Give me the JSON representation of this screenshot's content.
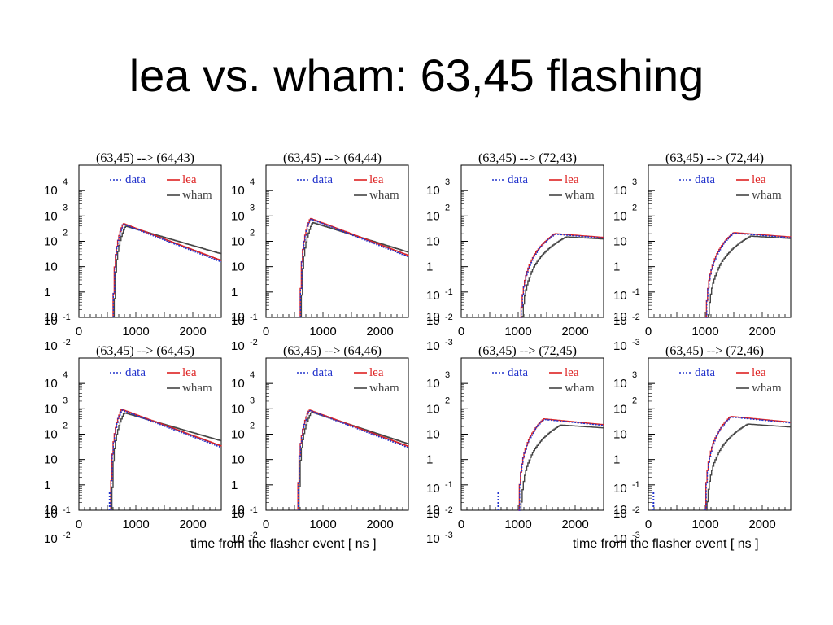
{
  "title": "lea vs. wham: 63,45 flashing",
  "legend": {
    "data": "data",
    "lea": "lea",
    "wham": "wham"
  },
  "colors": {
    "data": "#2233cc",
    "lea": "#dd2222",
    "wham": "#444444"
  },
  "xlabel": "time from the flasher event [ ns ]",
  "chart_data": [
    {
      "type": "line",
      "title": "(63,45) --> (64,43)",
      "xlim": [
        0,
        2500
      ],
      "xticks": [
        0,
        1000,
        2000
      ],
      "yscale": "log",
      "ylim": [
        0.01,
        10000
      ],
      "ytick_labels": [
        {
          "base": "10",
          "exp": "4"
        },
        {
          "base": "10",
          "exp": "3"
        },
        {
          "base": "10",
          "exp": "2"
        },
        {
          "base": "10",
          "exp": ""
        },
        {
          "base": "1",
          "exp": ""
        },
        {
          "base": "10",
          "exp": "-1"
        },
        {
          "base": "10",
          "exp": "-2"
        }
      ],
      "onset": 600,
      "peak_t": 780,
      "peak": 50,
      "decay_per_ns": 0.00195,
      "wham_onset": 620,
      "wham_peak_t": 820,
      "wham_peak": 40,
      "wham_decay_per_ns": 0.0015,
      "data_early": []
    },
    {
      "type": "line",
      "title": "(63,45) --> (64,44)",
      "xlim": [
        0,
        2500
      ],
      "xticks": [
        0,
        1000,
        2000
      ],
      "yscale": "log",
      "ylim": [
        0.01,
        10000
      ],
      "ytick_labels": [
        {
          "base": "10",
          "exp": "4"
        },
        {
          "base": "10",
          "exp": "3"
        },
        {
          "base": "10",
          "exp": "2"
        },
        {
          "base": "10",
          "exp": ""
        },
        {
          "base": "1",
          "exp": ""
        },
        {
          "base": "10",
          "exp": "-1"
        },
        {
          "base": "10",
          "exp": "-2"
        }
      ],
      "onset": 600,
      "peak_t": 780,
      "peak": 80,
      "decay_per_ns": 0.00195,
      "wham_onset": 620,
      "wham_peak_t": 820,
      "wham_peak": 55,
      "wham_decay_per_ns": 0.0016,
      "data_early": []
    },
    {
      "type": "line",
      "title": "(63,45) --> (72,43)",
      "xlim": [
        0,
        2500
      ],
      "xticks": [
        0,
        1000,
        2000
      ],
      "yscale": "log",
      "ylim": [
        0.001,
        1000
      ],
      "ytick_labels": [
        {
          "base": "10",
          "exp": "3"
        },
        {
          "base": "10",
          "exp": "2"
        },
        {
          "base": "10",
          "exp": ""
        },
        {
          "base": "1",
          "exp": ""
        },
        {
          "base": "10",
          "exp": "-1"
        },
        {
          "base": "10",
          "exp": "-2"
        },
        {
          "base": "10",
          "exp": "-3"
        }
      ],
      "onset": 1030,
      "peak_t": 1650,
      "peak": 2,
      "decay_per_ns": 0.0004,
      "wham_onset": 1050,
      "wham_peak_t": 1850,
      "wham_peak": 1.5,
      "wham_decay_per_ns": 0.0003,
      "data_early": []
    },
    {
      "type": "line",
      "title": "(63,45) --> (72,44)",
      "xlim": [
        0,
        2500
      ],
      "xticks": [
        0,
        1000,
        2000
      ],
      "yscale": "log",
      "ylim": [
        0.001,
        1000
      ],
      "ytick_labels": [
        {
          "base": "10",
          "exp": "3"
        },
        {
          "base": "10",
          "exp": "2"
        },
        {
          "base": "10",
          "exp": ""
        },
        {
          "base": "1",
          "exp": ""
        },
        {
          "base": "10",
          "exp": "-1"
        },
        {
          "base": "10",
          "exp": "-2"
        },
        {
          "base": "10",
          "exp": "-3"
        }
      ],
      "onset": 1000,
      "peak_t": 1500,
      "peak": 2.2,
      "decay_per_ns": 0.0004,
      "wham_onset": 1030,
      "wham_peak_t": 1800,
      "wham_peak": 1.6,
      "wham_decay_per_ns": 0.0003,
      "data_early": []
    },
    {
      "type": "line",
      "title": "(63,45) --> (64,45)",
      "xlim": [
        0,
        2500
      ],
      "xticks": [
        0,
        1000,
        2000
      ],
      "yscale": "log",
      "ylim": [
        0.01,
        10000
      ],
      "ytick_labels": [
        {
          "base": "10",
          "exp": "4"
        },
        {
          "base": "10",
          "exp": "3"
        },
        {
          "base": "10",
          "exp": "2"
        },
        {
          "base": "10",
          "exp": ""
        },
        {
          "base": "1",
          "exp": ""
        },
        {
          "base": "10",
          "exp": "-1"
        },
        {
          "base": "10",
          "exp": "-2"
        }
      ],
      "onset": 560,
      "peak_t": 750,
      "peak": 95,
      "decay_per_ns": 0.0019,
      "wham_onset": 580,
      "wham_peak_t": 800,
      "wham_peak": 70,
      "wham_decay_per_ns": 0.0015,
      "data_early": [
        540
      ]
    },
    {
      "type": "line",
      "title": "(63,45) --> (64,46)",
      "xlim": [
        0,
        2500
      ],
      "xticks": [
        0,
        1000,
        2000
      ],
      "yscale": "log",
      "ylim": [
        0.01,
        10000
      ],
      "ytick_labels": [
        {
          "base": "10",
          "exp": "4"
        },
        {
          "base": "10",
          "exp": "3"
        },
        {
          "base": "10",
          "exp": "2"
        },
        {
          "base": "10",
          "exp": ""
        },
        {
          "base": "1",
          "exp": ""
        },
        {
          "base": "10",
          "exp": "-1"
        },
        {
          "base": "10",
          "exp": "-2"
        }
      ],
      "onset": 560,
      "peak_t": 760,
      "peak": 90,
      "decay_per_ns": 0.0019,
      "wham_onset": 580,
      "wham_peak_t": 800,
      "wham_peak": 75,
      "wham_decay_per_ns": 0.0017,
      "data_early": []
    },
    {
      "type": "line",
      "title": "(63,45) --> (72,45)",
      "xlim": [
        0,
        2500
      ],
      "xticks": [
        0,
        1000,
        2000
      ],
      "yscale": "log",
      "ylim": [
        0.001,
        1000
      ],
      "ytick_labels": [
        {
          "base": "10",
          "exp": "3"
        },
        {
          "base": "10",
          "exp": "2"
        },
        {
          "base": "10",
          "exp": ""
        },
        {
          "base": "1",
          "exp": ""
        },
        {
          "base": "10",
          "exp": "-1"
        },
        {
          "base": "10",
          "exp": "-2"
        },
        {
          "base": "10",
          "exp": "-3"
        }
      ],
      "onset": 1000,
      "peak_t": 1450,
      "peak": 4,
      "decay_per_ns": 0.0005,
      "wham_onset": 1030,
      "wham_peak_t": 1750,
      "wham_peak": 2.3,
      "wham_decay_per_ns": 0.00035,
      "data_early": [
        650
      ]
    },
    {
      "type": "line",
      "title": "(63,45) --> (72,46)",
      "xlim": [
        0,
        2500
      ],
      "xticks": [
        0,
        1000,
        2000
      ],
      "yscale": "log",
      "ylim": [
        0.001,
        1000
      ],
      "ytick_labels": [
        {
          "base": "10",
          "exp": "3"
        },
        {
          "base": "10",
          "exp": "2"
        },
        {
          "base": "10",
          "exp": ""
        },
        {
          "base": "1",
          "exp": ""
        },
        {
          "base": "10",
          "exp": "-1"
        },
        {
          "base": "10",
          "exp": "-2"
        },
        {
          "base": "10",
          "exp": "-3"
        }
      ],
      "onset": 990,
      "peak_t": 1450,
      "peak": 5,
      "decay_per_ns": 0.0005,
      "wham_onset": 1010,
      "wham_peak_t": 1750,
      "wham_peak": 2.5,
      "wham_decay_per_ns": 0.00035,
      "data_early": [
        90
      ]
    }
  ]
}
